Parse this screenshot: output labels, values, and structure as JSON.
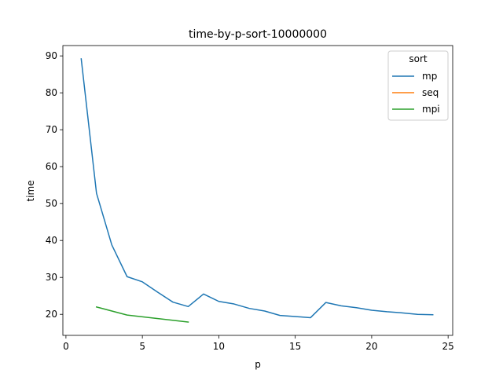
{
  "chart_data": {
    "type": "line",
    "title": "time-by-p-sort-10000000",
    "xlabel": "p",
    "ylabel": "time",
    "xlim": [
      -0.2,
      25.3
    ],
    "ylim": [
      14.3,
      92.8
    ],
    "xticks": [
      0,
      5,
      10,
      15,
      20,
      25
    ],
    "yticks": [
      20,
      30,
      40,
      50,
      60,
      70,
      80,
      90
    ],
    "grid": false,
    "legend": {
      "title": "sort",
      "placement": "top-right"
    },
    "series": [
      {
        "name": "mp",
        "color": "#1f77b4",
        "x": [
          1,
          2,
          3,
          4,
          5,
          6,
          7,
          8,
          9,
          10,
          11,
          12,
          13,
          14,
          15,
          16,
          17,
          18,
          19,
          20,
          21,
          22,
          23,
          24
        ],
        "y": [
          89.2,
          52.8,
          38.8,
          30.2,
          28.8,
          26.0,
          23.3,
          22.1,
          25.5,
          23.5,
          22.8,
          21.6,
          20.9,
          19.7,
          19.4,
          19.1,
          23.2,
          22.3,
          21.8,
          21.1,
          20.7,
          20.4,
          20.0,
          19.9
        ]
      },
      {
        "name": "seq",
        "color": "#ff7f0e",
        "x": [],
        "y": []
      },
      {
        "name": "mpi",
        "color": "#2ca02c",
        "x": [
          2,
          4,
          8
        ],
        "y": [
          22.0,
          19.8,
          17.9
        ]
      }
    ]
  }
}
